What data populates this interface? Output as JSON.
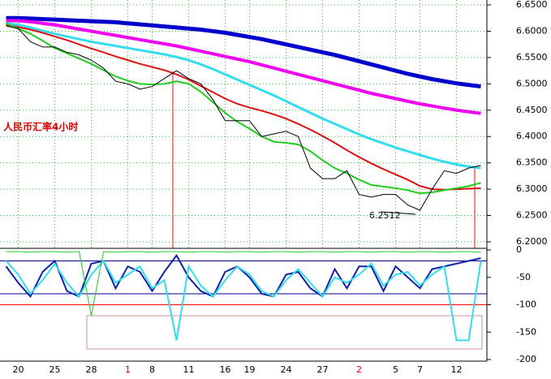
{
  "chart_data": [
    {
      "type": "line",
      "title": "人民币汇率4小时",
      "low_label": "6.2512",
      "ylim": [
        6.2,
        6.65
      ],
      "yticks": [
        {
          "value": 6.2,
          "label": "6.2000"
        },
        {
          "value": 6.25,
          "label": "6.2500"
        },
        {
          "value": 6.3,
          "label": "6.3000"
        },
        {
          "value": 6.35,
          "label": "6.3500"
        },
        {
          "value": 6.4,
          "label": "6.4000"
        },
        {
          "value": 6.45,
          "label": "6.4500"
        },
        {
          "value": 6.5,
          "label": "6.5000"
        },
        {
          "value": 6.55,
          "label": "6.5500"
        },
        {
          "value": 6.6,
          "label": "6.6000"
        },
        {
          "value": 6.65,
          "label": "6.6500"
        }
      ],
      "grid": true,
      "series": [
        {
          "color": "#0000cc",
          "width": 5,
          "values": [
            6.625,
            6.625,
            6.624,
            6.623,
            6.622,
            6.621,
            6.62,
            6.619,
            6.618,
            6.617,
            6.615,
            6.613,
            6.611,
            6.609,
            6.607,
            6.605,
            6.603,
            6.6,
            6.597,
            6.593,
            6.589,
            6.585,
            6.58,
            6.575,
            6.57,
            6.565,
            6.56,
            6.555,
            6.549,
            6.543,
            6.537,
            6.531,
            6.525,
            6.519,
            6.514,
            6.509,
            6.505,
            6.501,
            6.498,
            6.495
          ]
        },
        {
          "color": "#ee00ee",
          "width": 4,
          "values": [
            6.62,
            6.62,
            6.618,
            6.615,
            6.612,
            6.608,
            6.604,
            6.6,
            6.596,
            6.592,
            6.588,
            6.584,
            6.58,
            6.576,
            6.572,
            6.567,
            6.562,
            6.557,
            6.552,
            6.547,
            6.542,
            6.536,
            6.53,
            6.524,
            6.518,
            6.512,
            6.506,
            6.5,
            6.494,
            6.488,
            6.482,
            6.477,
            6.472,
            6.467,
            6.462,
            6.458,
            6.454,
            6.45,
            6.447,
            6.444
          ]
        },
        {
          "color": "#33ddee",
          "width": 3,
          "values": [
            6.615,
            6.612,
            6.607,
            6.601,
            6.595,
            6.59,
            6.585,
            6.58,
            6.576,
            6.572,
            6.568,
            6.564,
            6.56,
            6.556,
            6.551,
            6.545,
            6.537,
            6.528,
            6.518,
            6.508,
            6.498,
            6.488,
            6.478,
            6.467,
            6.456,
            6.445,
            6.434,
            6.424,
            6.414,
            6.404,
            6.395,
            6.387,
            6.379,
            6.372,
            6.365,
            6.358,
            6.352,
            6.347,
            6.343,
            6.34
          ]
        },
        {
          "color": "#dd1111",
          "width": 2,
          "values": [
            6.612,
            6.608,
            6.603,
            6.597,
            6.59,
            6.583,
            6.575,
            6.567,
            6.56,
            6.552,
            6.545,
            6.538,
            6.532,
            6.526,
            6.518,
            6.508,
            6.496,
            6.484,
            6.472,
            6.462,
            6.455,
            6.449,
            6.442,
            6.434,
            6.424,
            6.413,
            6.401,
            6.388,
            6.374,
            6.361,
            6.349,
            6.338,
            6.328,
            6.318,
            6.306,
            6.3,
            6.299,
            6.3,
            6.301,
            6.302
          ]
        },
        {
          "color": "#22cc22",
          "width": 2,
          "values": [
            6.615,
            6.605,
            6.595,
            6.582,
            6.568,
            6.558,
            6.548,
            6.538,
            6.526,
            6.514,
            6.506,
            6.5,
            6.499,
            6.5,
            6.505,
            6.5,
            6.485,
            6.465,
            6.445,
            6.428,
            6.415,
            6.4,
            6.39,
            6.388,
            6.385,
            6.372,
            6.355,
            6.34,
            6.33,
            6.318,
            6.308,
            6.305,
            6.302,
            6.298,
            6.292,
            6.294,
            6.298,
            6.302,
            6.306,
            6.312
          ]
        },
        {
          "color": "#000000",
          "width": 1,
          "values": [
            6.61,
            6.605,
            6.58,
            6.57,
            6.57,
            6.56,
            6.555,
            6.545,
            6.53,
            6.505,
            6.5,
            6.49,
            6.495,
            6.51,
            6.525,
            6.51,
            6.5,
            6.47,
            6.43,
            6.43,
            6.43,
            6.4,
            6.405,
            6.41,
            6.4,
            6.34,
            6.32,
            6.32,
            6.335,
            6.29,
            6.285,
            6.29,
            6.29,
            6.27,
            6.26,
            6.3,
            6.335,
            6.33,
            6.34,
            6.345
          ]
        }
      ]
    },
    {
      "type": "line",
      "categories": [
        null,
        "20",
        null,
        null,
        "25",
        null,
        null,
        "28",
        null,
        null,
        "1",
        null,
        "8",
        null,
        null,
        "11",
        null,
        null,
        "16",
        null,
        "19",
        null,
        null,
        "24",
        null,
        null,
        "27",
        null,
        null,
        "2",
        null,
        null,
        "5",
        null,
        "7",
        null,
        null,
        "12",
        null,
        null
      ],
      "category_colors": [
        null,
        "#000000",
        null,
        null,
        "#000000",
        null,
        null,
        "#000000",
        null,
        null,
        "#dd0000",
        null,
        "#000000",
        null,
        null,
        "#000000",
        null,
        null,
        "#000000",
        null,
        "#000000",
        null,
        null,
        "#000000",
        null,
        null,
        "#000000",
        null,
        null,
        "#dd0000",
        null,
        null,
        "#000000",
        null,
        "#000000",
        null,
        null,
        "#000000",
        null,
        null
      ],
      "ylim": [
        -200,
        0
      ],
      "yticks": [
        0,
        -50,
        -100,
        -150,
        -200
      ],
      "levels": [
        -20,
        -80,
        -100
      ],
      "level_colors": [
        "#000088",
        "#000088",
        "#ff0000"
      ],
      "series": [
        {
          "color": "#1122aa",
          "width": 2,
          "values": [
            -30,
            -60,
            -85,
            -40,
            -20,
            -75,
            -85,
            -25,
            -20,
            -70,
            -30,
            -40,
            -75,
            -40,
            -10,
            -50,
            -75,
            -85,
            -40,
            -30,
            -50,
            -80,
            -85,
            -45,
            -40,
            -70,
            -85,
            -35,
            -70,
            -30,
            -30,
            -75,
            -30,
            -50,
            -70,
            -35,
            -30,
            -25,
            -20,
            -15
          ]
        },
        {
          "color": "#33ddee",
          "width": 2,
          "values": [
            -20,
            -45,
            -80,
            -55,
            -25,
            -60,
            -85,
            -45,
            -20,
            -60,
            -45,
            -30,
            -70,
            -55,
            -165,
            -30,
            -65,
            -85,
            -55,
            -30,
            -45,
            -75,
            -85,
            -55,
            -35,
            -60,
            -85,
            -50,
            -60,
            -45,
            -25,
            -65,
            -45,
            -40,
            -65,
            -45,
            -30,
            -165,
            -165,
            -20
          ]
        },
        {
          "color": "#22cc22",
          "width": 1,
          "values": [
            -3,
            -3,
            -4,
            -3,
            -3,
            -4,
            -3,
            -120,
            -3,
            -4,
            -3,
            -3,
            -4,
            -3,
            -3,
            -4,
            -3,
            -3,
            -4,
            -3,
            -3,
            -4,
            -3,
            -3,
            -4,
            -3,
            -3,
            -4,
            -3,
            -3,
            -4,
            -3,
            -3,
            -4,
            -3,
            -3,
            -4,
            -3,
            -3,
            -4
          ]
        }
      ]
    }
  ]
}
